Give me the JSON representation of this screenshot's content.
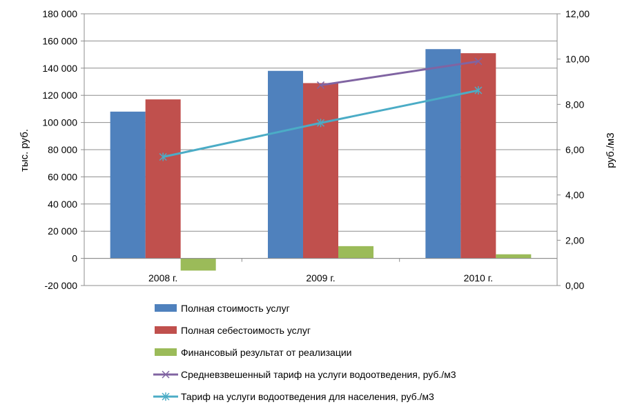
{
  "chart_data": {
    "type": "bar",
    "categories": [
      "2008 г.",
      "2009 г.",
      "2010 г."
    ],
    "series": [
      {
        "name": "Полная стоимость услуг",
        "type": "bar",
        "axis": "left",
        "color": "#4F81BD",
        "values": [
          108000,
          138000,
          154000
        ]
      },
      {
        "name": "Полная себестоимость услуг",
        "type": "bar",
        "axis": "left",
        "color": "#C0504D",
        "values": [
          117000,
          129000,
          151000
        ]
      },
      {
        "name": "Финансовый результат от реализации",
        "type": "bar",
        "axis": "left",
        "color": "#9BBB59",
        "values": [
          -9000,
          9000,
          3000
        ]
      },
      {
        "name": "Средневзвешенный тариф на услуги водоотведения, руб./м3",
        "type": "line",
        "axis": "right",
        "marker": "x",
        "color": "#8064A2",
        "values": [
          null,
          8.85,
          9.9
        ]
      },
      {
        "name": "Тариф на услуги водоотведения для населения, руб./м3",
        "type": "line",
        "axis": "right",
        "marker": "star",
        "color": "#4BACC6",
        "values": [
          5.68,
          7.18,
          8.62
        ]
      }
    ],
    "y_left": {
      "label": "тыс. руб.",
      "ylim": [
        -20000,
        180000
      ],
      "ticks": [
        -20000,
        0,
        20000,
        40000,
        60000,
        80000,
        100000,
        120000,
        140000,
        160000,
        180000
      ],
      "tick_labels": [
        "-20 000",
        "0",
        "20 000",
        "40 000",
        "60 000",
        "80 000",
        "100 000",
        "120 000",
        "140 000",
        "160 000",
        "180 000"
      ]
    },
    "y_right": {
      "label": "руб./м3",
      "ylim": [
        0,
        12
      ],
      "ticks": [
        0,
        2,
        4,
        6,
        8,
        10,
        12
      ],
      "tick_labels": [
        "0,00",
        "2,00",
        "4,00",
        "6,00",
        "8,00",
        "10,00",
        "12,00"
      ]
    },
    "grid": true,
    "legend_position": "bottom"
  }
}
